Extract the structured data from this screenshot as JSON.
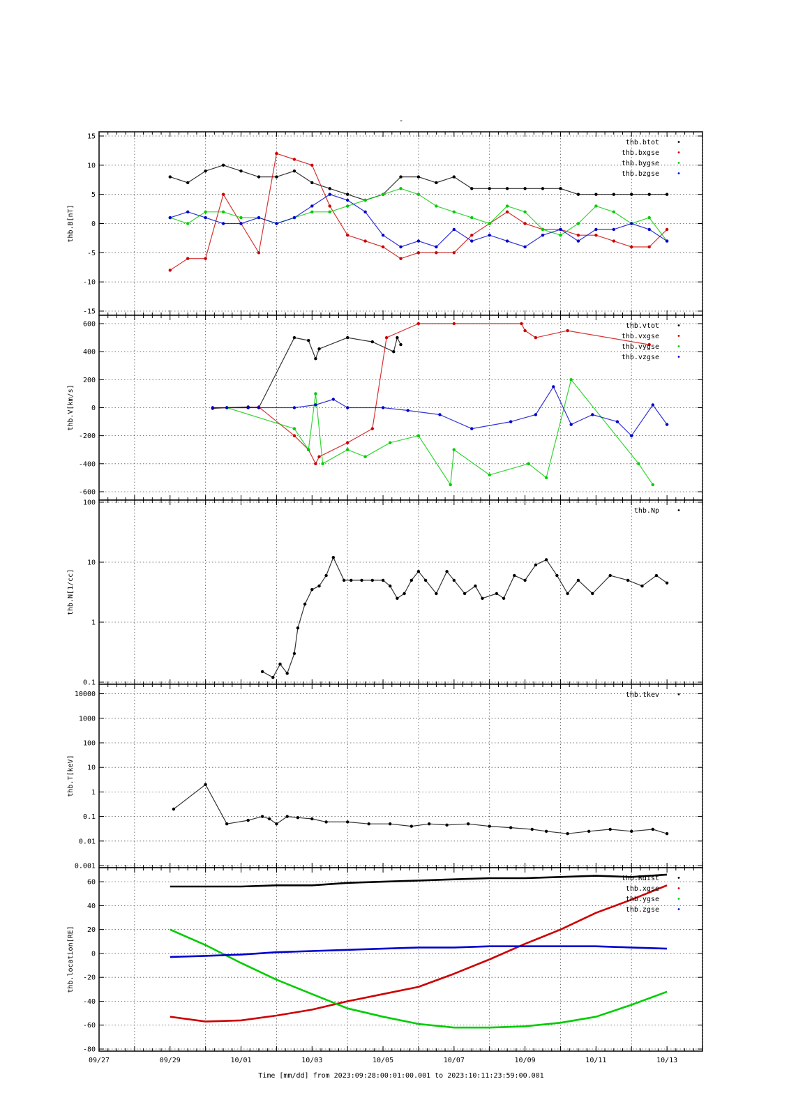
{
  "figure": {
    "title": "-",
    "xlabel": "Time [mm/dd]  from 2023:09:28:00:01:00.001  to  2023:10:11:23:59:00.001",
    "x_ticks": [
      "09/27",
      "09/29",
      "10/01",
      "10/03",
      "10/05",
      "10/07",
      "10/09",
      "10/11",
      "10/13"
    ]
  },
  "colors": {
    "black": "#000000",
    "red": "#cc0000",
    "green": "#00cc00",
    "blue": "#0000cc",
    "grid": "#555555"
  },
  "chart_data": [
    {
      "type": "scatter",
      "ylabel": "thb.B[nT]",
      "ylim": [
        -15,
        15
      ],
      "yscale": "linear",
      "ytick_labels": [
        "15",
        "10",
        "5",
        "0",
        "-5",
        "-10",
        "-15"
      ],
      "legend_position": "top-right",
      "series": [
        {
          "name": "thb.btot",
          "color": "black",
          "x": [
            1,
            1.5,
            2,
            2.5,
            3,
            3.5,
            4,
            4.5,
            5,
            5.5,
            6,
            6.5,
            7,
            7.5,
            8,
            8.5,
            9,
            9.5,
            10,
            10.5,
            11,
            11.5,
            12,
            12.5,
            13,
            13.5,
            14,
            14.5,
            15
          ],
          "y": [
            8,
            7,
            9,
            10,
            9,
            8,
            8,
            9,
            7,
            6,
            5,
            4,
            5,
            8,
            8,
            7,
            8,
            6,
            6,
            6,
            6,
            6,
            6,
            5,
            5,
            5,
            5,
            5,
            5
          ]
        },
        {
          "name": "thb.bxgse",
          "color": "red",
          "x": [
            1,
            1.5,
            2,
            2.5,
            3,
            3.5,
            4,
            4.5,
            5,
            5.5,
            6,
            6.5,
            7,
            7.5,
            8,
            8.5,
            9,
            9.5,
            10,
            10.5,
            11,
            11.5,
            12,
            12.5,
            13,
            13.5,
            14,
            14.5,
            15
          ],
          "y": [
            -8,
            -6,
            -6,
            5,
            0,
            -5,
            12,
            11,
            10,
            3,
            -2,
            -3,
            -4,
            -6,
            -5,
            -5,
            -5,
            -2,
            0,
            2,
            0,
            -1,
            -1,
            -2,
            -2,
            -3,
            -4,
            -4,
            -1
          ]
        },
        {
          "name": "thb.bygse",
          "color": "green",
          "x": [
            1,
            1.5,
            2,
            2.5,
            3,
            3.5,
            4,
            4.5,
            5,
            5.5,
            6,
            6.5,
            7,
            7.5,
            8,
            8.5,
            9,
            9.5,
            10,
            10.5,
            11,
            11.5,
            12,
            12.5,
            13,
            13.5,
            14,
            14.5,
            15
          ],
          "y": [
            1,
            0,
            2,
            2,
            1,
            1,
            0,
            1,
            2,
            2,
            3,
            4,
            5,
            6,
            5,
            3,
            2,
            1,
            0,
            3,
            2,
            -1,
            -2,
            0,
            3,
            2,
            0,
            1,
            -3
          ]
        },
        {
          "name": "thb.bzgse",
          "color": "blue",
          "x": [
            1,
            1.5,
            2,
            2.5,
            3,
            3.5,
            4,
            4.5,
            5,
            5.5,
            6,
            6.5,
            7,
            7.5,
            8,
            8.5,
            9,
            9.5,
            10,
            10.5,
            11,
            11.5,
            12,
            12.5,
            13,
            13.5,
            14,
            14.5,
            15
          ],
          "y": [
            1,
            2,
            1,
            0,
            0,
            1,
            0,
            1,
            3,
            5,
            4,
            2,
            -2,
            -4,
            -3,
            -4,
            -1,
            -3,
            -2,
            -3,
            -4,
            -2,
            -1,
            -3,
            -1,
            -1,
            0,
            -1,
            -3
          ]
        }
      ]
    },
    {
      "type": "scatter",
      "ylabel": "thb.V[km/s]",
      "ylim": [
        -620,
        620
      ],
      "yscale": "linear",
      "ytick_labels": [
        "600",
        "400",
        "200",
        "0",
        "-200",
        "-400",
        "-600"
      ],
      "legend_position": "top-right",
      "series": [
        {
          "name": "thb.vtot",
          "color": "black",
          "x": [
            2.2,
            2.6,
            3.2,
            3.5,
            4.5,
            4.9,
            5.1,
            5.2,
            6.0,
            6.7,
            7.3,
            7.4,
            7.5
          ],
          "y": [
            -5,
            0,
            5,
            0,
            500,
            480,
            350,
            420,
            500,
            470,
            400,
            500,
            450
          ]
        },
        {
          "name": "thb.vxgse",
          "color": "red",
          "x": [
            2.2,
            2.6,
            3.2,
            3.5,
            4.5,
            4.9,
            5.1,
            5.2,
            6.0,
            6.7,
            7.1,
            8.0,
            9.0,
            10.9,
            11.0,
            11.3,
            12.2,
            14.5
          ],
          "y": [
            0,
            0,
            0,
            5,
            -200,
            -300,
            -400,
            -350,
            -250,
            -150,
            500,
            600,
            600,
            600,
            550,
            500,
            550,
            450
          ]
        },
        {
          "name": "thb.vygse",
          "color": "green",
          "x": [
            2.6,
            4.5,
            4.9,
            5.1,
            5.3,
            6.0,
            6.5,
            7.2,
            8.0,
            8.9,
            9.0,
            10.0,
            11.1,
            11.6,
            12.3,
            14.2,
            14.6
          ],
          "y": [
            0,
            -150,
            -300,
            100,
            -400,
            -300,
            -350,
            -250,
            -200,
            -550,
            -300,
            -480,
            -400,
            -500,
            200,
            -400,
            -550
          ]
        },
        {
          "name": "thb.vzgse",
          "color": "blue",
          "x": [
            2.2,
            2.6,
            3.2,
            3.5,
            4.5,
            5.1,
            5.6,
            6.0,
            7.0,
            7.7,
            8.6,
            9.5,
            10.6,
            11.3,
            11.8,
            12.3,
            12.9,
            13.6,
            14.0,
            14.6,
            15.0
          ],
          "y": [
            0,
            0,
            0,
            0,
            0,
            20,
            60,
            0,
            0,
            -20,
            -50,
            -150,
            -100,
            -50,
            150,
            -120,
            -50,
            -100,
            -200,
            20,
            -120
          ]
        }
      ]
    },
    {
      "type": "scatter",
      "ylabel": "thb.N[1/cc]",
      "ylim": [
        0.1,
        100
      ],
      "yscale": "log",
      "ytick_labels": [
        "100",
        "10",
        "1",
        "0.1"
      ],
      "legend_position": "top-right",
      "series": [
        {
          "name": "thb.Np",
          "color": "black",
          "x": [
            3.6,
            3.9,
            4.1,
            4.3,
            4.5,
            4.6,
            4.8,
            5.0,
            5.2,
            5.4,
            5.6,
            5.9,
            6.1,
            6.4,
            6.7,
            7.0,
            7.2,
            7.4,
            7.6,
            7.8,
            8.0,
            8.2,
            8.5,
            8.8,
            9.0,
            9.3,
            9.6,
            9.8,
            10.2,
            10.4,
            10.7,
            11.0,
            11.3,
            11.6,
            11.9,
            12.2,
            12.5,
            12.9,
            13.4,
            13.9,
            14.3,
            14.7,
            15.0
          ],
          "y": [
            0.15,
            0.12,
            0.2,
            0.14,
            0.3,
            0.8,
            2,
            3.5,
            4,
            6,
            12,
            5,
            5,
            5,
            5,
            5,
            4,
            2.5,
            3,
            5,
            7,
            5,
            3,
            7,
            5,
            3,
            4,
            2.5,
            3,
            2.5,
            6,
            5,
            9,
            11,
            6,
            3,
            5,
            3,
            6,
            5,
            4,
            6,
            4.5
          ]
        }
      ]
    },
    {
      "type": "scatter",
      "ylabel": "thb.T[keV]",
      "ylim": [
        0.001,
        20000
      ],
      "yscale": "log",
      "ytick_labels": [
        "10000",
        "1000",
        "100",
        "10",
        "1",
        "0.1",
        "0.01",
        "0.001"
      ],
      "legend_position": "top-right",
      "series": [
        {
          "name": "thb.tkev",
          "color": "black",
          "x": [
            1.1,
            2.0,
            2.6,
            3.2,
            3.6,
            3.8,
            4.0,
            4.3,
            4.6,
            5.0,
            5.4,
            6.0,
            6.6,
            7.2,
            7.8,
            8.3,
            8.8,
            9.4,
            10.0,
            10.6,
            11.2,
            11.6,
            12.2,
            12.8,
            13.4,
            14.0,
            14.6,
            15.0
          ],
          "y": [
            0.2,
            2,
            0.05,
            0.07,
            0.1,
            0.08,
            0.05,
            0.1,
            0.09,
            0.08,
            0.06,
            0.06,
            0.05,
            0.05,
            0.04,
            0.05,
            0.045,
            0.05,
            0.04,
            0.035,
            0.03,
            0.025,
            0.02,
            0.025,
            0.03,
            0.025,
            0.03,
            0.02
          ]
        }
      ]
    },
    {
      "type": "line",
      "ylabel": "thb.location[RE]",
      "ylim": [
        -80,
        70
      ],
      "yscale": "linear",
      "ytick_labels": [
        "60",
        "40",
        "20",
        "0",
        "-20",
        "-40",
        "-60",
        "-80"
      ],
      "legend_position": "top-right",
      "series": [
        {
          "name": "thb.Rdist",
          "color": "black",
          "x": [
            1,
            2,
            3,
            4,
            5,
            6,
            7,
            8,
            9,
            10,
            11,
            12,
            13,
            14,
            15
          ],
          "y": [
            56,
            56,
            56,
            57,
            57,
            59,
            60,
            61,
            62,
            63,
            63,
            64,
            65,
            64,
            66
          ]
        },
        {
          "name": "thb.xgse",
          "color": "red",
          "x": [
            1,
            2,
            3,
            4,
            5,
            6,
            7,
            8,
            9,
            10,
            11,
            12,
            13,
            14,
            15
          ],
          "y": [
            -53,
            -57,
            -56,
            -52,
            -47,
            -40,
            -34,
            -28,
            -17,
            -5,
            8,
            20,
            34,
            45,
            57
          ]
        },
        {
          "name": "thb.ygse",
          "color": "green",
          "x": [
            1,
            2,
            3,
            4,
            5,
            6,
            7,
            8,
            9,
            10,
            11,
            12,
            13,
            14,
            15
          ],
          "y": [
            20,
            7,
            -8,
            -22,
            -34,
            -46,
            -53,
            -59,
            -62,
            -62,
            -61,
            -58,
            -53,
            -43,
            -32
          ]
        },
        {
          "name": "thb.zgse",
          "color": "blue",
          "x": [
            1,
            2,
            3,
            4,
            5,
            6,
            7,
            8,
            9,
            10,
            11,
            12,
            13,
            14,
            15
          ],
          "y": [
            -3,
            -2,
            -1,
            1,
            2,
            3,
            4,
            5,
            5,
            6,
            6,
            6,
            6,
            5,
            4
          ]
        }
      ]
    }
  ]
}
